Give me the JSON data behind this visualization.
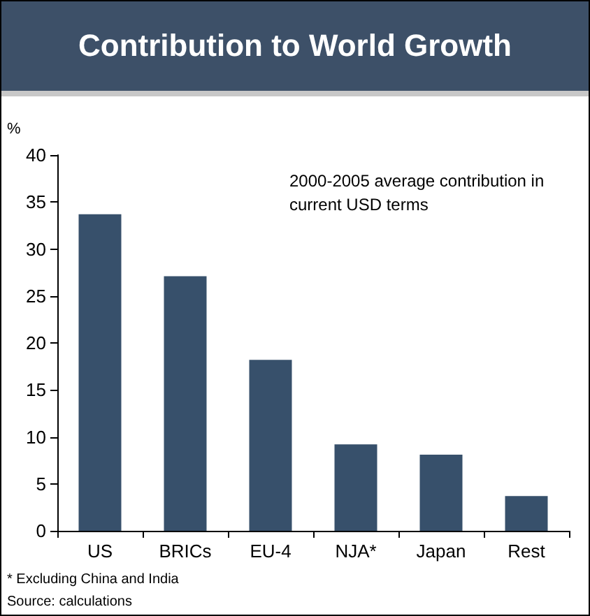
{
  "chart_data": {
    "type": "bar",
    "title": "Contribution to World Growth",
    "ylabel": "%",
    "categories": [
      "US",
      "BRICs",
      "EU-4",
      "NJA*",
      "Japan",
      "Rest"
    ],
    "values": [
      33.7,
      27.1,
      18.2,
      9.2,
      8.1,
      3.7
    ],
    "color": "#37506b",
    "ylim": [
      0,
      40
    ],
    "yticks": [
      0,
      5,
      10,
      15,
      20,
      25,
      30,
      35,
      40
    ],
    "grid": false,
    "annotations": [
      "2000-2005 average contribution in current USD terms",
      "* Excluding China and India",
      "Source: calculations"
    ]
  }
}
